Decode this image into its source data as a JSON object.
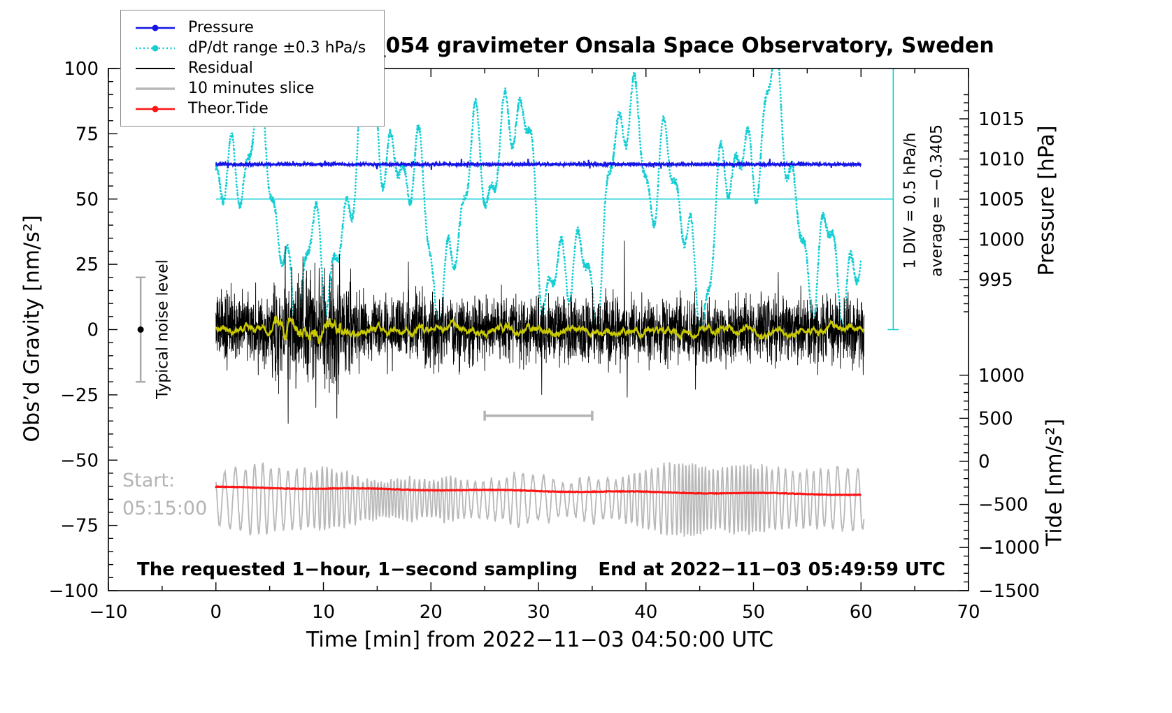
{
  "title": "SCG_054 gravimeter Onsala Space Observatory, Sweden",
  "legend": {
    "items": [
      {
        "label": "Pressure",
        "color": "#1414e6",
        "dash": "",
        "width": 2.5,
        "marker": true
      },
      {
        "label": "dP/dt range ±0.3 hPa/s",
        "color": "#14ced4",
        "dash": "2 3.5",
        "width": 2.5,
        "marker": true
      },
      {
        "label": "Residual",
        "color": "#000000",
        "dash": "",
        "width": 2,
        "marker": false
      },
      {
        "label": "10 minutes slice",
        "color": "#b8b8b8",
        "dash": "",
        "width": 3.5,
        "marker": false
      },
      {
        "label": "Theor.Tide",
        "color": "#ff1414",
        "dash": "",
        "width": 2.5,
        "marker": true
      }
    ]
  },
  "axes": {
    "x": {
      "label": "Time [min] from 2022−11−03 04:50:00 UTC",
      "min": -10,
      "max": 70,
      "major_ticks": [
        -10,
        0,
        10,
        20,
        30,
        40,
        50,
        60,
        70
      ],
      "minor_step": 5
    },
    "y_left": {
      "label": "Obs’d Gravity [nm/s²]",
      "min": -100,
      "max": 100,
      "major_ticks": [
        100,
        75,
        50,
        25,
        0,
        -25,
        -50,
        -75,
        -100
      ],
      "minor_step": 5
    },
    "y_pressure": {
      "label": "Pressure [hPa]",
      "major_ticks": [
        1015,
        1010,
        1005,
        1000,
        995
      ],
      "minor_step": 1
    },
    "y_tide": {
      "label": "Tide [nm/s²]",
      "major_ticks": [
        1000,
        500,
        0,
        -500,
        -1000,
        -1500
      ],
      "minor_step": 100
    }
  },
  "annotations": {
    "div_scale": "1 DIV = 0.5 hPa/h",
    "average": "average = −0.3405",
    "noise_level": "Typical noise level",
    "start_label": "Start:",
    "start_time": "05:15:00",
    "footer_left": "The requested 1−hour, 1−second sampling",
    "footer_right": "End at 2022−11−03 05:49:59 UTC"
  },
  "chart_data": {
    "type": "line",
    "title": "SCG_054 gravimeter Onsala Space Observatory, Sweden",
    "xlabel": "Time [min] from 2022−11−03 04:50:00 UTC",
    "x_range": [
      -10,
      70
    ],
    "y_left_range": [
      -100,
      100
    ],
    "pressure_axis_ticks": [
      995,
      1000,
      1005,
      1010,
      1015
    ],
    "tide_axis_ticks": [
      -1500,
      -1000,
      -500,
      0,
      500,
      1000
    ],
    "grid": false,
    "legend_position": "top-left",
    "series": [
      {
        "name": "Pressure",
        "color": "#1414e6",
        "axis": "pressure",
        "approx_mean_hPa": 1009.2,
        "noise_sd_hPa": 0.2,
        "left_axis_equiv": 63.3,
        "t_span": [
          0,
          60
        ]
      },
      {
        "name": "dP/dt range ±0.3 hPa/s",
        "color": "#14ced4",
        "axis": "left",
        "style": "dotted",
        "center": 50,
        "approx_range": [
          0,
          100
        ],
        "clipped_at_top": true,
        "t_span": [
          0,
          60
        ]
      },
      {
        "name": "Residual",
        "color": "#000000",
        "axis": "left",
        "mean": 0,
        "typical_sd": 7,
        "peak_abs": 36,
        "noisier_span_min": [
          5,
          12.5
        ],
        "t_span": [
          0,
          60.3
        ]
      },
      {
        "name": "Residual smoothed",
        "color": "#c9c900",
        "axis": "left",
        "mean": 0,
        "typical_sd": 2.5,
        "t_span": [
          0,
          60.3
        ]
      },
      {
        "name": "10 minutes slice",
        "color": "#b8b8b8",
        "axis": "left",
        "center": -65,
        "amplitude_range": [
          5,
          14
        ],
        "t_span": [
          0,
          60.3
        ]
      },
      {
        "name": "Theor.Tide",
        "color": "#ff1414",
        "axis": "left",
        "start_value": -60.4,
        "end_value": -63.2,
        "tide_axis_equiv_start": -285,
        "t_span": [
          0,
          60
        ]
      }
    ],
    "reference_marks": {
      "cyan_mean_line": {
        "value": 50,
        "t_span": [
          0,
          63
        ],
        "color": "#14ced4"
      },
      "div_axis": {
        "t": 63,
        "value_span": [
          0,
          100
        ],
        "color": "#14ced4",
        "label": "1 DIV = 0.5 hPa/h",
        "average_label": "average = −0.3405"
      },
      "noise_errorbar": {
        "t": -7,
        "center": 0,
        "half_range": 20,
        "label": "Typical noise level"
      },
      "interval_bar": {
        "t_span": [
          25,
          35
        ],
        "value": -33
      }
    }
  }
}
